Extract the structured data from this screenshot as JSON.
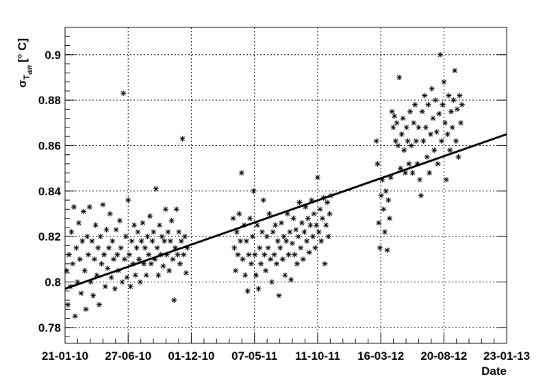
{
  "chart_data": {
    "type": "scatter",
    "title": "",
    "xlabel": "Date",
    "ylabel_main": "σ",
    "ylabel_sub": "T",
    "ylabel_subsub": "diff",
    "ylabel_unit": "[° C]",
    "x_axis_type": "date",
    "xlim": [
      "2010-01-21",
      "2013-01-23"
    ],
    "ylim": [
      0.773,
      0.912
    ],
    "x_ticks": [
      {
        "date": "2010-01-21",
        "label": "21-01-10"
      },
      {
        "date": "2010-06-27",
        "label": "27-06-10"
      },
      {
        "date": "2010-12-01",
        "label": "01-12-10"
      },
      {
        "date": "2011-05-07",
        "label": "07-05-11"
      },
      {
        "date": "2011-10-11",
        "label": "11-10-11"
      },
      {
        "date": "2012-03-16",
        "label": "16-03-12"
      },
      {
        "date": "2012-08-20",
        "label": "20-08-12"
      },
      {
        "date": "2013-01-23",
        "label": "23-01-13"
      }
    ],
    "y_ticks": [
      {
        "value": 0.78,
        "label": "0.78"
      },
      {
        "value": 0.8,
        "label": "0.8"
      },
      {
        "value": 0.82,
        "label": "0.82"
      },
      {
        "value": 0.84,
        "label": "0.84"
      },
      {
        "value": 0.86,
        "label": "0.86"
      },
      {
        "value": 0.88,
        "label": "0.88"
      },
      {
        "value": 0.9,
        "label": "0.9"
      }
    ],
    "grid": true,
    "marker": "asterisk",
    "marker_color": "#000000",
    "fit_line": {
      "x": [
        "2010-01-21",
        "2013-01-23"
      ],
      "y": [
        0.797,
        0.865
      ],
      "color": "#000000"
    },
    "series": [
      {
        "points": [
          [
            "2010-01-25",
            0.805
          ],
          [
            "2010-01-28",
            0.79
          ],
          [
            "2010-01-31",
            0.812
          ],
          [
            "2010-02-03",
            0.798
          ],
          [
            "2010-02-06",
            0.822
          ],
          [
            "2010-02-09",
            0.808
          ],
          [
            "2010-02-12",
            0.833
          ],
          [
            "2010-02-15",
            0.785
          ],
          [
            "2010-02-18",
            0.815
          ],
          [
            "2010-02-21",
            0.8
          ],
          [
            "2010-02-24",
            0.826
          ],
          [
            "2010-02-27",
            0.81
          ],
          [
            "2010-03-02",
            0.795
          ],
          [
            "2010-03-05",
            0.818
          ],
          [
            "2010-03-08",
            0.831
          ],
          [
            "2010-03-11",
            0.805
          ],
          [
            "2010-03-14",
            0.788
          ],
          [
            "2010-03-17",
            0.82
          ],
          [
            "2010-03-20",
            0.812
          ],
          [
            "2010-03-23",
            0.833
          ],
          [
            "2010-03-26",
            0.8
          ],
          [
            "2010-03-29",
            0.818
          ],
          [
            "2010-04-01",
            0.794
          ],
          [
            "2010-04-04",
            0.81
          ],
          [
            "2010-04-07",
            0.825
          ],
          [
            "2010-04-10",
            0.803
          ],
          [
            "2010-04-13",
            0.815
          ],
          [
            "2010-04-16",
            0.79
          ],
          [
            "2010-04-19",
            0.82
          ],
          [
            "2010-04-22",
            0.808
          ],
          [
            "2010-04-25",
            0.834
          ],
          [
            "2010-04-28",
            0.812
          ],
          [
            "2010-05-01",
            0.798
          ],
          [
            "2010-05-04",
            0.823
          ],
          [
            "2010-05-07",
            0.806
          ],
          [
            "2010-05-10",
            0.815
          ],
          [
            "2010-05-13",
            0.83
          ],
          [
            "2010-05-16",
            0.802
          ],
          [
            "2010-05-19",
            0.818
          ],
          [
            "2010-05-22",
            0.81
          ],
          [
            "2010-05-25",
            0.797
          ],
          [
            "2010-05-28",
            0.823
          ],
          [
            "2010-05-31",
            0.812
          ],
          [
            "2010-06-03",
            0.805
          ],
          [
            "2010-06-06",
            0.827
          ],
          [
            "2010-06-09",
            0.815
          ],
          [
            "2010-06-12",
            0.8
          ],
          [
            "2010-06-15",
            0.883
          ],
          [
            "2010-06-18",
            0.81
          ],
          [
            "2010-06-21",
            0.82
          ],
          [
            "2010-06-24",
            0.802
          ],
          [
            "2010-06-27",
            0.836
          ],
          [
            "2010-06-30",
            0.812
          ],
          [
            "2010-07-03",
            0.798
          ],
          [
            "2010-07-06",
            0.818
          ],
          [
            "2010-07-09",
            0.808
          ],
          [
            "2010-07-12",
            0.825
          ],
          [
            "2010-07-15",
            0.803
          ],
          [
            "2010-07-18",
            0.815
          ],
          [
            "2010-07-21",
            0.822
          ],
          [
            "2010-07-24",
            0.81
          ],
          [
            "2010-07-27",
            0.8
          ],
          [
            "2010-07-30",
            0.818
          ],
          [
            "2010-08-02",
            0.826
          ],
          [
            "2010-08-05",
            0.808
          ],
          [
            "2010-08-08",
            0.815
          ],
          [
            "2010-08-11",
            0.803
          ],
          [
            "2010-08-14",
            0.82
          ],
          [
            "2010-08-17",
            0.812
          ],
          [
            "2010-08-20",
            0.829
          ],
          [
            "2010-08-23",
            0.808
          ],
          [
            "2010-08-26",
            0.818
          ],
          [
            "2010-08-29",
            0.822
          ],
          [
            "2010-09-01",
            0.81
          ],
          [
            "2010-09-04",
            0.841
          ],
          [
            "2010-09-07",
            0.815
          ],
          [
            "2010-09-10",
            0.803
          ],
          [
            "2010-09-13",
            0.825
          ],
          [
            "2010-09-16",
            0.812
          ],
          [
            "2010-09-19",
            0.82
          ],
          [
            "2010-09-22",
            0.807
          ],
          [
            "2010-09-25",
            0.818
          ],
          [
            "2010-09-28",
            0.832
          ],
          [
            "2010-10-01",
            0.812
          ],
          [
            "2010-10-04",
            0.822
          ],
          [
            "2010-10-07",
            0.805
          ],
          [
            "2010-10-10",
            0.818
          ],
          [
            "2010-10-13",
            0.827
          ],
          [
            "2010-10-16",
            0.81
          ],
          [
            "2010-10-19",
            0.792
          ],
          [
            "2010-10-22",
            0.815
          ],
          [
            "2010-10-25",
            0.832
          ],
          [
            "2010-10-28",
            0.812
          ],
          [
            "2010-10-31",
            0.822
          ],
          [
            "2010-11-03",
            0.808
          ],
          [
            "2010-11-06",
            0.818
          ],
          [
            "2010-11-09",
            0.863
          ],
          [
            "2010-11-12",
            0.812
          ],
          [
            "2010-11-15",
            0.82
          ],
          [
            "2010-11-18",
            0.804
          ],
          [
            "2010-11-21",
            0.815
          ],
          [
            "2011-03-15",
            0.828
          ],
          [
            "2011-03-18",
            0.815
          ],
          [
            "2011-03-21",
            0.805
          ],
          [
            "2011-03-24",
            0.822
          ],
          [
            "2011-03-27",
            0.812
          ],
          [
            "2011-03-30",
            0.83
          ],
          [
            "2011-04-02",
            0.818
          ],
          [
            "2011-04-05",
            0.848
          ],
          [
            "2011-04-08",
            0.81
          ],
          [
            "2011-04-11",
            0.825
          ],
          [
            "2011-04-14",
            0.803
          ],
          [
            "2011-04-17",
            0.818
          ],
          [
            "2011-04-20",
            0.796
          ],
          [
            "2011-04-23",
            0.812
          ],
          [
            "2011-04-26",
            0.828
          ],
          [
            "2011-04-29",
            0.808
          ],
          [
            "2011-05-02",
            0.82
          ],
          [
            "2011-05-05",
            0.84
          ],
          [
            "2011-05-08",
            0.812
          ],
          [
            "2011-05-11",
            0.803
          ],
          [
            "2011-05-14",
            0.825
          ],
          [
            "2011-05-17",
            0.797
          ],
          [
            "2011-05-20",
            0.815
          ],
          [
            "2011-05-23",
            0.808
          ],
          [
            "2011-05-26",
            0.822
          ],
          [
            "2011-05-29",
            0.836
          ],
          [
            "2011-06-01",
            0.812
          ],
          [
            "2011-06-04",
            0.805
          ],
          [
            "2011-06-07",
            0.82
          ],
          [
            "2011-06-10",
            0.815
          ],
          [
            "2011-06-13",
            0.83
          ],
          [
            "2011-06-16",
            0.81
          ],
          [
            "2011-06-19",
            0.8
          ],
          [
            "2011-06-22",
            0.822
          ],
          [
            "2011-06-25",
            0.812
          ],
          [
            "2011-06-28",
            0.825
          ],
          [
            "2011-07-01",
            0.808
          ],
          [
            "2011-07-04",
            0.818
          ],
          [
            "2011-07-07",
            0.794
          ],
          [
            "2011-07-10",
            0.815
          ],
          [
            "2011-07-13",
            0.826
          ],
          [
            "2011-07-16",
            0.81
          ],
          [
            "2011-07-19",
            0.82
          ],
          [
            "2011-07-22",
            0.803
          ],
          [
            "2011-07-25",
            0.818
          ],
          [
            "2011-07-28",
            0.83
          ],
          [
            "2011-07-31",
            0.812
          ],
          [
            "2011-08-03",
            0.822
          ],
          [
            "2011-08-06",
            0.801
          ],
          [
            "2011-08-09",
            0.817
          ],
          [
            "2011-08-12",
            0.828
          ],
          [
            "2011-08-15",
            0.812
          ],
          [
            "2011-08-18",
            0.823
          ],
          [
            "2011-08-21",
            0.808
          ],
          [
            "2011-08-24",
            0.82
          ],
          [
            "2011-08-27",
            0.835
          ],
          [
            "2011-08-30",
            0.815
          ],
          [
            "2011-09-02",
            0.826
          ],
          [
            "2011-09-05",
            0.81
          ],
          [
            "2011-09-08",
            0.822
          ],
          [
            "2011-09-11",
            0.833
          ],
          [
            "2011-09-14",
            0.818
          ],
          [
            "2011-09-17",
            0.828
          ],
          [
            "2011-09-20",
            0.813
          ],
          [
            "2011-09-23",
            0.825
          ],
          [
            "2011-09-26",
            0.836
          ],
          [
            "2011-09-29",
            0.82
          ],
          [
            "2011-10-02",
            0.83
          ],
          [
            "2011-10-05",
            0.815
          ],
          [
            "2011-10-08",
            0.825
          ],
          [
            "2011-10-11",
            0.846
          ],
          [
            "2011-10-14",
            0.822
          ],
          [
            "2011-10-17",
            0.832
          ],
          [
            "2011-10-20",
            0.818
          ],
          [
            "2011-10-23",
            0.828
          ],
          [
            "2011-10-26",
            0.837
          ],
          [
            "2011-10-29",
            0.808
          ],
          [
            "2011-11-01",
            0.825
          ],
          [
            "2011-11-04",
            0.835
          ],
          [
            "2011-11-07",
            0.82
          ],
          [
            "2011-11-10",
            0.83
          ],
          [
            "2011-11-13",
            0.838
          ],
          [
            "2012-03-05",
            0.862
          ],
          [
            "2012-03-08",
            0.852
          ],
          [
            "2012-03-11",
            0.826
          ],
          [
            "2012-03-14",
            0.815
          ],
          [
            "2012-03-17",
            0.838
          ],
          [
            "2012-03-20",
            0.845
          ],
          [
            "2012-03-23",
            0.832
          ],
          [
            "2012-03-26",
            0.822
          ],
          [
            "2012-03-29",
            0.84
          ],
          [
            "2012-04-01",
            0.814
          ],
          [
            "2012-04-04",
            0.836
          ],
          [
            "2012-04-07",
            0.828
          ],
          [
            "2012-04-10",
            0.846
          ],
          [
            "2012-04-13",
            0.875
          ],
          [
            "2012-04-16",
            0.868
          ],
          [
            "2012-04-19",
            0.873
          ],
          [
            "2012-04-22",
            0.862
          ],
          [
            "2012-04-25",
            0.87
          ],
          [
            "2012-04-28",
            0.86
          ],
          [
            "2012-05-01",
            0.89
          ],
          [
            "2012-05-04",
            0.85
          ],
          [
            "2012-05-07",
            0.865
          ],
          [
            "2012-05-10",
            0.872
          ],
          [
            "2012-05-13",
            0.858
          ],
          [
            "2012-05-16",
            0.848
          ],
          [
            "2012-05-19",
            0.868
          ],
          [
            "2012-05-22",
            0.862
          ],
          [
            "2012-05-25",
            0.852
          ],
          [
            "2012-05-28",
            0.875
          ],
          [
            "2012-05-31",
            0.86
          ],
          [
            "2012-06-03",
            0.848
          ],
          [
            "2012-06-06",
            0.87
          ],
          [
            "2012-06-09",
            0.878
          ],
          [
            "2012-06-12",
            0.862
          ],
          [
            "2012-06-15",
            0.852
          ],
          [
            "2012-06-18",
            0.868
          ],
          [
            "2012-06-21",
            0.845
          ],
          [
            "2012-06-24",
            0.838
          ],
          [
            "2012-06-27",
            0.875
          ],
          [
            "2012-06-30",
            0.862
          ],
          [
            "2012-07-03",
            0.882
          ],
          [
            "2012-07-06",
            0.868
          ],
          [
            "2012-07-09",
            0.855
          ],
          [
            "2012-07-12",
            0.878
          ],
          [
            "2012-07-15",
            0.848
          ],
          [
            "2012-07-18",
            0.865
          ],
          [
            "2012-07-21",
            0.885
          ],
          [
            "2012-07-24",
            0.872
          ],
          [
            "2012-07-27",
            0.858
          ],
          [
            "2012-07-30",
            0.88
          ],
          [
            "2012-08-02",
            0.866
          ],
          [
            "2012-08-05",
            0.852
          ],
          [
            "2012-08-08",
            0.874
          ],
          [
            "2012-08-11",
            0.9
          ],
          [
            "2012-08-14",
            0.862
          ],
          [
            "2012-08-17",
            0.878
          ],
          [
            "2012-08-20",
            0.888
          ],
          [
            "2012-08-23",
            0.87
          ],
          [
            "2012-08-26",
            0.845
          ],
          [
            "2012-08-29",
            0.865
          ],
          [
            "2012-09-01",
            0.882
          ],
          [
            "2012-09-04",
            0.858
          ],
          [
            "2012-09-07",
            0.875
          ],
          [
            "2012-09-10",
            0.868
          ],
          [
            "2012-09-13",
            0.88
          ],
          [
            "2012-09-16",
            0.893
          ],
          [
            "2012-09-19",
            0.862
          ],
          [
            "2012-09-22",
            0.876
          ],
          [
            "2012-09-25",
            0.855
          ],
          [
            "2012-09-28",
            0.882
          ],
          [
            "2012-10-01",
            0.87
          ],
          [
            "2012-10-04",
            0.878
          ]
        ]
      }
    ]
  }
}
